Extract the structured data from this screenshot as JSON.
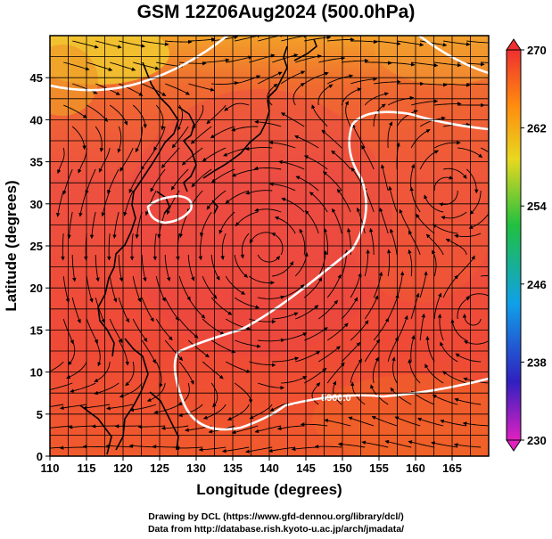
{
  "title": "GSM 12Z06Aug2024 (500.0hPa)",
  "map": {
    "xlabel": "Longitude (degrees)",
    "ylabel": "Latitude  (degrees)",
    "lon_range": [
      110,
      170
    ],
    "lat_range": [
      0,
      50
    ],
    "lon_ticks": [
      110,
      115,
      120,
      125,
      130,
      135,
      140,
      145,
      150,
      155,
      160,
      165
    ],
    "lat_ticks": [
      0,
      5,
      10,
      15,
      20,
      25,
      30,
      35,
      40,
      45
    ],
    "grid_step_deg": 2.5,
    "field_label": "5900.0",
    "colorbar": {
      "ticks": [
        230,
        238,
        246,
        254,
        262,
        270
      ],
      "range": [
        230,
        270
      ],
      "colors": [
        "#e020c0",
        "#2020c0",
        "#00a0e0",
        "#20c060",
        "#e0d020",
        "#ff8000",
        "#ee3030"
      ]
    }
  },
  "credits": {
    "line1": "Drawing by DCL (https://www.gfd-dennou.org/library/dcl/)",
    "line2": "Data from http://database.rish.kyoto-u.ac.jp/arch/jmadata/"
  }
}
